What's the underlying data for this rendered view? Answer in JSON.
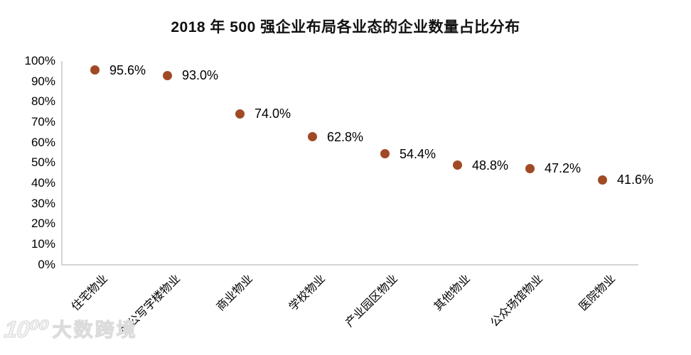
{
  "title": "2018 年 500 强企业布局各业态的企业数量占比分布",
  "watermark": {
    "logo_text": "10⁰⁰",
    "brand": "大数跨境"
  },
  "colors": {
    "marker": "#a04a25",
    "axis_line": "#d4d4d4",
    "text": "#000000",
    "title_text": "#111111",
    "watermark": "#dcdcdc"
  },
  "chart_data": {
    "type": "scatter",
    "title": "2018 年 500 强企业布局各业态的企业数量占比分布",
    "categories": [
      "住宅物业",
      "办公写字楼物业",
      "商业物业",
      "学校物业",
      "产业园区物业",
      "其他物业",
      "公众场馆物业",
      "医院物业"
    ],
    "values": [
      95.6,
      93.0,
      74.0,
      62.8,
      54.4,
      48.8,
      47.2,
      41.6
    ],
    "point_labels": [
      "95.6%",
      "93.0%",
      "74.0%",
      "62.8%",
      "54.4%",
      "48.8%",
      "47.2%",
      "41.6%"
    ],
    "xlabel": "",
    "ylabel": "",
    "ylim": [
      0,
      100
    ],
    "yticks": [
      100,
      90,
      80,
      70,
      60,
      50,
      40,
      30,
      20,
      10,
      0
    ],
    "ytick_labels": [
      "100%",
      "90%",
      "80%",
      "70%",
      "60%",
      "50%",
      "40%",
      "30%",
      "20%",
      "10%",
      "0%"
    ],
    "grid": false,
    "legend": "none",
    "marker_color": "#a04a25",
    "marker_diameter_px": 13
  }
}
